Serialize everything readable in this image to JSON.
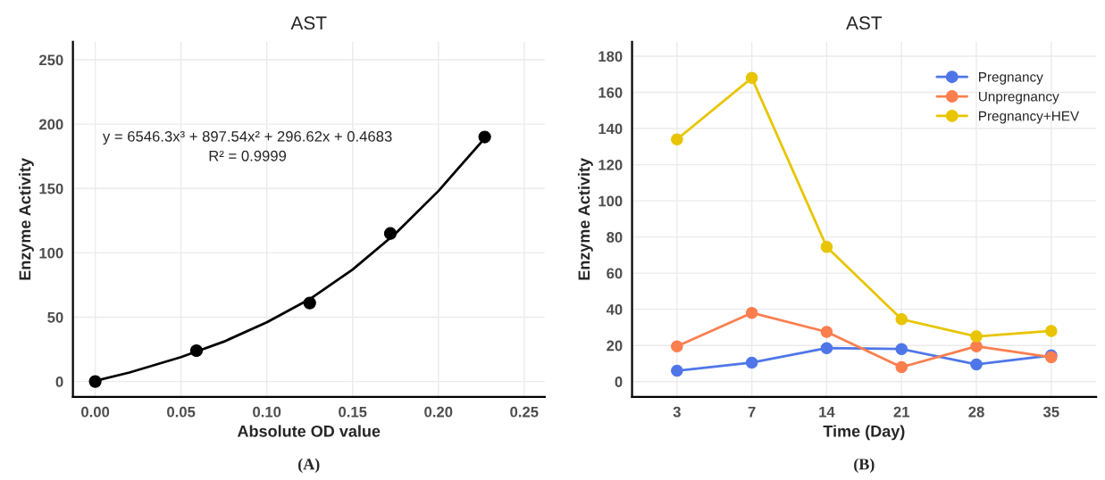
{
  "chart_data": [
    {
      "type": "scatter",
      "title": "AST",
      "xlabel": "Absolute OD value",
      "ylabel": "Enzyme Activity",
      "series": [
        {
          "type": "scatter",
          "marker": "circle",
          "color": "#000000",
          "x": [
            0.0,
            0.059,
            0.125,
            0.172,
            0.227
          ],
          "values": [
            0,
            24,
            61,
            115,
            190
          ]
        },
        {
          "type": "line",
          "marker": "none",
          "color": "#000000",
          "x": [
            0.0,
            0.02,
            0.05,
            0.075,
            0.1,
            0.125,
            0.15,
            0.175,
            0.2,
            0.225
          ],
          "values": [
            0.5,
            7,
            19,
            31,
            46,
            64,
            87,
            115,
            148,
            186
          ]
        }
      ],
      "xlim": [
        -0.013,
        0.262
      ],
      "ylim": [
        -12,
        264
      ],
      "xticks": [
        {
          "value": 0,
          "label": "0.00"
        },
        0.05,
        {
          "value": 0.1,
          "label": "0.10"
        },
        0.15,
        {
          "value": 0.2,
          "label": "0.20"
        },
        0.25
      ],
      "yticks": [
        0,
        50,
        100,
        150,
        200,
        250
      ],
      "grid": true,
      "annotations": [
        "y = 6546.3x³ + 897.54x² + 296.62x + 0.4683",
        "R² = 0.9999",
        "(A)"
      ]
    },
    {
      "type": "line",
      "title": "AST",
      "xlabel": "Time (Day)",
      "ylabel": "Enzyme Activity",
      "categories": [
        "3",
        "7",
        "14",
        "21",
        "28",
        "35"
      ],
      "series": [
        {
          "name": "Pregnancy",
          "color": "#4f76e8",
          "values": [
            6,
            10.5,
            18.5,
            18,
            9.5,
            14.5
          ]
        },
        {
          "name": "Unpregnancy",
          "color": "#fb7e4f",
          "values": [
            19.5,
            38,
            27.5,
            8,
            19.5,
            13.5
          ]
        },
        {
          "name": "Pregnancy+HEV",
          "color": "#e8c500",
          "values": [
            134,
            168,
            74.5,
            34.5,
            25,
            28
          ]
        }
      ],
      "ylim": [
        -8.5,
        188
      ],
      "yticks": [
        0,
        20,
        40,
        60,
        80,
        100,
        120,
        140,
        160,
        180
      ],
      "grid": true,
      "legend": "top right",
      "marker": "circle",
      "annotations": [
        "(B)"
      ]
    }
  ]
}
